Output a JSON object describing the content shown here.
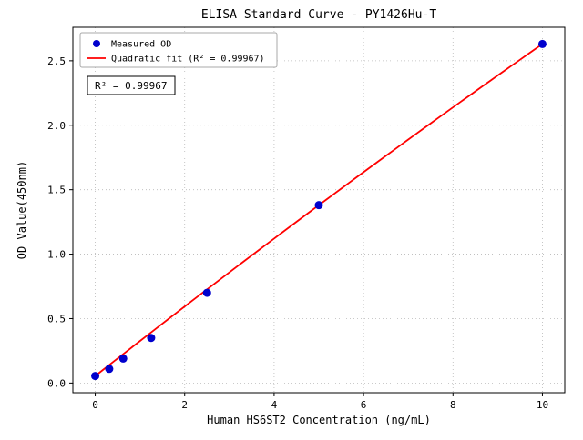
{
  "chart_data": {
    "type": "scatter",
    "title": "ELISA Standard Curve - PY1426Hu-T",
    "xlabel": "Human HS6ST2 Concentration (ng/mL)",
    "ylabel": "OD Value(450nm)",
    "xlim": [
      -0.5,
      10.5
    ],
    "ylim": [
      -0.075,
      2.76
    ],
    "grid": true,
    "background": "#ffffff",
    "grid_color": "#b8b8b8",
    "axis_color": "#000000",
    "xticks": [
      {
        "v": 0,
        "label": "0"
      },
      {
        "v": 2,
        "label": "2"
      },
      {
        "v": 4,
        "label": "4"
      },
      {
        "v": 6,
        "label": "6"
      },
      {
        "v": 8,
        "label": "8"
      },
      {
        "v": 10,
        "label": "10"
      }
    ],
    "yticks": [
      {
        "v": 0.0,
        "label": "0.0"
      },
      {
        "v": 0.5,
        "label": "0.5"
      },
      {
        "v": 1.0,
        "label": "1.0"
      },
      {
        "v": 1.5,
        "label": "1.5"
      },
      {
        "v": 2.0,
        "label": "2.0"
      },
      {
        "v": 2.5,
        "label": "2.5"
      }
    ],
    "series": [
      {
        "name": "Measured OD",
        "type": "scatter",
        "color": "#0000cd",
        "marker_radius": 4.5,
        "points": [
          [
            0,
            0.055
          ],
          [
            0.313,
            0.11
          ],
          [
            0.625,
            0.19
          ],
          [
            1.25,
            0.35
          ],
          [
            2.5,
            0.7
          ],
          [
            5,
            1.38
          ],
          [
            10,
            2.63
          ]
        ]
      },
      {
        "name": "Quadratic fit",
        "type": "line",
        "color": "#ff0000",
        "line_width": 1.8,
        "fit": {
          "a": -0.0015,
          "b": 0.2725,
          "c": 0.055,
          "x_start": 0,
          "x_end": 10
        }
      }
    ],
    "legend": {
      "position": "upper-left",
      "entries": [
        {
          "label": "Measured OD",
          "marker": "dot",
          "color": "#0000cd"
        },
        {
          "label": "Quadratic fit (R² = 0.99967)",
          "marker": "line",
          "color": "#ff0000"
        }
      ]
    },
    "annotation": {
      "text": "R² = 0.99967"
    }
  }
}
